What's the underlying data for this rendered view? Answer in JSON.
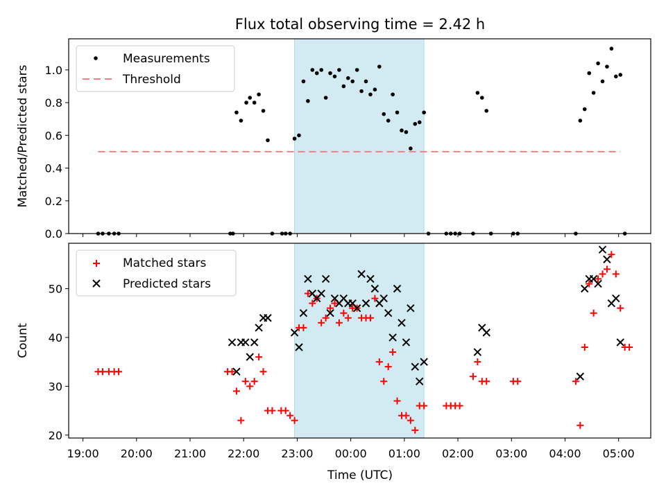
{
  "title": "Flux total observing time = 2.42 h",
  "chart_data": [
    {
      "type": "scatter",
      "ylabel": "Matched/Predicted stars",
      "ylim": [
        0,
        1.19
      ],
      "yticks": [
        "0.0",
        "0.2",
        "0.4",
        "0.6",
        "0.8",
        "1.0"
      ],
      "ytick_values": [
        0,
        0.2,
        0.4,
        0.6,
        0.8,
        1.0
      ],
      "legend_position": "upper left",
      "legend": [
        {
          "label": "Measurements",
          "marker": "dot",
          "color": "#000000"
        },
        {
          "label": "Threshold",
          "marker": "dash",
          "color": "#f08080"
        }
      ],
      "threshold": {
        "y": 0.5,
        "x_start": "19:17",
        "x_end": "05:02"
      },
      "shaded_span": {
        "start": "22:57",
        "end": "01:22",
        "color": "#add8e6"
      },
      "series": [
        {
          "name": "Measurements",
          "points": [
            [
              "19:17",
              0
            ],
            [
              "19:22",
              0
            ],
            [
              "19:29",
              0
            ],
            [
              "19:35",
              0
            ],
            [
              "19:40",
              0
            ],
            [
              "21:45",
              0
            ],
            [
              "21:48",
              0
            ],
            [
              "21:52",
              0.74
            ],
            [
              "21:57",
              0.69
            ],
            [
              "22:03",
              0.8
            ],
            [
              "22:07",
              0.83
            ],
            [
              "22:12",
              0.8
            ],
            [
              "22:17",
              0.85
            ],
            [
              "22:22",
              0.75
            ],
            [
              "22:27",
              0.57
            ],
            [
              "22:32",
              0
            ],
            [
              "22:43",
              0
            ],
            [
              "22:47",
              0
            ],
            [
              "22:52",
              0
            ],
            [
              "22:57",
              0.58
            ],
            [
              "23:02",
              0.6
            ],
            [
              "23:07",
              0.93
            ],
            [
              "23:12",
              0.81
            ],
            [
              "23:17",
              1.0
            ],
            [
              "23:22",
              0.98
            ],
            [
              "23:27",
              1.0
            ],
            [
              "23:32",
              0.83
            ],
            [
              "23:37",
              0.98
            ],
            [
              "23:42",
              0.96
            ],
            [
              "23:47",
              1.0
            ],
            [
              "23:52",
              0.9
            ],
            [
              "23:57",
              0.95
            ],
            [
              "00:02",
              0.93
            ],
            [
              "00:07",
              1.0
            ],
            [
              "00:12",
              0.87
            ],
            [
              "00:17",
              0.93
            ],
            [
              "00:22",
              0.85
            ],
            [
              "00:27",
              0.88
            ],
            [
              "00:32",
              1.02
            ],
            [
              "00:37",
              0.73
            ],
            [
              "00:42",
              0.69
            ],
            [
              "00:47",
              0.85
            ],
            [
              "00:52",
              0.74
            ],
            [
              "00:57",
              0.63
            ],
            [
              "01:02",
              0.62
            ],
            [
              "01:07",
              0.52
            ],
            [
              "01:12",
              0.67
            ],
            [
              "01:17",
              0.68
            ],
            [
              "01:22",
              0.74
            ],
            [
              "01:27",
              0
            ],
            [
              "01:47",
              0
            ],
            [
              "01:52",
              0
            ],
            [
              "01:57",
              0
            ],
            [
              "02:02",
              0
            ],
            [
              "02:17",
              0
            ],
            [
              "02:22",
              0.86
            ],
            [
              "02:27",
              0.83
            ],
            [
              "02:32",
              0.75
            ],
            [
              "02:37",
              0
            ],
            [
              "03:02",
              0
            ],
            [
              "03:07",
              0
            ],
            [
              "04:12",
              0
            ],
            [
              "04:17",
              0.69
            ],
            [
              "04:22",
              0.76
            ],
            [
              "04:27",
              0.98
            ],
            [
              "04:32",
              0.86
            ],
            [
              "04:37",
              1.04
            ],
            [
              "04:42",
              0.93
            ],
            [
              "04:47",
              1.02
            ],
            [
              "04:52",
              1.13
            ],
            [
              "04:57",
              0.96
            ],
            [
              "05:02",
              0.97
            ],
            [
              "05:07",
              0
            ]
          ]
        }
      ]
    },
    {
      "type": "scatter",
      "xlabel": "Time (UTC)",
      "ylabel": "Count",
      "ylim": [
        19.4,
        59.3
      ],
      "yticks": [
        "20",
        "30",
        "40",
        "50"
      ],
      "ytick_values": [
        20,
        30,
        40,
        50
      ],
      "legend_position": "upper left",
      "legend": [
        {
          "label": "Matched stars",
          "marker": "plus",
          "color": "#ff0000"
        },
        {
          "label": "Predicted stars",
          "marker": "x",
          "color": "#000000"
        }
      ],
      "shaded_span": {
        "start": "22:57",
        "end": "01:22",
        "color": "#add8e6"
      },
      "series": [
        {
          "name": "Matched stars",
          "points": [
            [
              "19:17",
              33
            ],
            [
              "19:22",
              33
            ],
            [
              "19:29",
              33
            ],
            [
              "19:35",
              33
            ],
            [
              "19:40",
              33
            ],
            [
              "21:42",
              33
            ],
            [
              "21:47",
              33
            ],
            [
              "21:52",
              29
            ],
            [
              "21:57",
              23
            ],
            [
              "22:02",
              31
            ],
            [
              "22:07",
              30
            ],
            [
              "22:12",
              31
            ],
            [
              "22:17",
              36
            ],
            [
              "22:22",
              33
            ],
            [
              "22:27",
              25
            ],
            [
              "22:32",
              25
            ],
            [
              "22:42",
              25
            ],
            [
              "22:47",
              25
            ],
            [
              "22:52",
              24
            ],
            [
              "22:57",
              23
            ],
            [
              "23:02",
              42
            ],
            [
              "23:07",
              42
            ],
            [
              "23:12",
              49
            ],
            [
              "23:17",
              47
            ],
            [
              "23:22",
              48
            ],
            [
              "23:27",
              43
            ],
            [
              "23:32",
              44
            ],
            [
              "23:37",
              46
            ],
            [
              "23:42",
              47
            ],
            [
              "23:47",
              43
            ],
            [
              "23:52",
              45
            ],
            [
              "23:57",
              44
            ],
            [
              "00:02",
              46
            ],
            [
              "00:07",
              46
            ],
            [
              "00:12",
              44
            ],
            [
              "00:17",
              44
            ],
            [
              "00:22",
              44
            ],
            [
              "00:27",
              48
            ],
            [
              "00:32",
              35
            ],
            [
              "00:37",
              31
            ],
            [
              "00:42",
              34
            ],
            [
              "00:47",
              37
            ],
            [
              "00:52",
              27
            ],
            [
              "00:57",
              24
            ],
            [
              "01:02",
              24
            ],
            [
              "01:07",
              23
            ],
            [
              "01:12",
              21
            ],
            [
              "01:17",
              26
            ],
            [
              "01:22",
              26
            ],
            [
              "01:47",
              26
            ],
            [
              "01:52",
              26
            ],
            [
              "01:57",
              26
            ],
            [
              "02:02",
              26
            ],
            [
              "02:17",
              32
            ],
            [
              "02:22",
              35
            ],
            [
              "02:27",
              31
            ],
            [
              "02:32",
              31
            ],
            [
              "03:02",
              31
            ],
            [
              "03:07",
              31
            ],
            [
              "04:12",
              31
            ],
            [
              "04:17",
              22
            ],
            [
              "04:22",
              38
            ],
            [
              "04:27",
              51
            ],
            [
              "04:32",
              45
            ],
            [
              "04:37",
              52
            ],
            [
              "04:42",
              53
            ],
            [
              "04:47",
              54
            ],
            [
              "04:52",
              57
            ],
            [
              "04:57",
              53
            ],
            [
              "05:02",
              46
            ],
            [
              "05:07",
              38
            ],
            [
              "05:12",
              38
            ]
          ]
        },
        {
          "name": "Predicted stars",
          "points": [
            [
              "21:47",
              39
            ],
            [
              "21:52",
              33
            ],
            [
              "21:57",
              39
            ],
            [
              "22:02",
              39
            ],
            [
              "22:07",
              36
            ],
            [
              "22:12",
              39
            ],
            [
              "22:17",
              42
            ],
            [
              "22:22",
              44
            ],
            [
              "22:27",
              44
            ],
            [
              "22:57",
              41
            ],
            [
              "23:02",
              38
            ],
            [
              "23:07",
              45
            ],
            [
              "23:12",
              52
            ],
            [
              "23:17",
              49
            ],
            [
              "23:22",
              48
            ],
            [
              "23:27",
              49
            ],
            [
              "23:32",
              52
            ],
            [
              "23:37",
              45
            ],
            [
              "23:42",
              48
            ],
            [
              "23:47",
              47
            ],
            [
              "23:52",
              48
            ],
            [
              "23:57",
              47
            ],
            [
              "00:02",
              47
            ],
            [
              "00:07",
              46
            ],
            [
              "00:12",
              53
            ],
            [
              "00:17",
              47
            ],
            [
              "00:22",
              52
            ],
            [
              "00:27",
              50
            ],
            [
              "00:32",
              47
            ],
            [
              "00:37",
              48
            ],
            [
              "00:42",
              45
            ],
            [
              "00:47",
              40
            ],
            [
              "00:52",
              50
            ],
            [
              "00:57",
              43
            ],
            [
              "01:02",
              39
            ],
            [
              "01:07",
              46
            ],
            [
              "01:12",
              34
            ],
            [
              "01:17",
              31
            ],
            [
              "01:22",
              35
            ],
            [
              "02:22",
              37
            ],
            [
              "02:27",
              42
            ],
            [
              "02:32",
              41
            ],
            [
              "04:17",
              32
            ],
            [
              "04:22",
              50
            ],
            [
              "04:27",
              52
            ],
            [
              "04:32",
              52
            ],
            [
              "04:37",
              51
            ],
            [
              "04:42",
              58
            ],
            [
              "04:47",
              56
            ],
            [
              "04:52",
              47
            ],
            [
              "04:57",
              48
            ],
            [
              "05:02",
              39
            ]
          ]
        }
      ]
    }
  ],
  "x_axis": {
    "start": "18:44",
    "end": "05:36",
    "ticks": [
      "19:00",
      "20:00",
      "21:00",
      "22:00",
      "23:00",
      "00:00",
      "01:00",
      "02:00",
      "03:00",
      "04:00",
      "05:00"
    ]
  }
}
